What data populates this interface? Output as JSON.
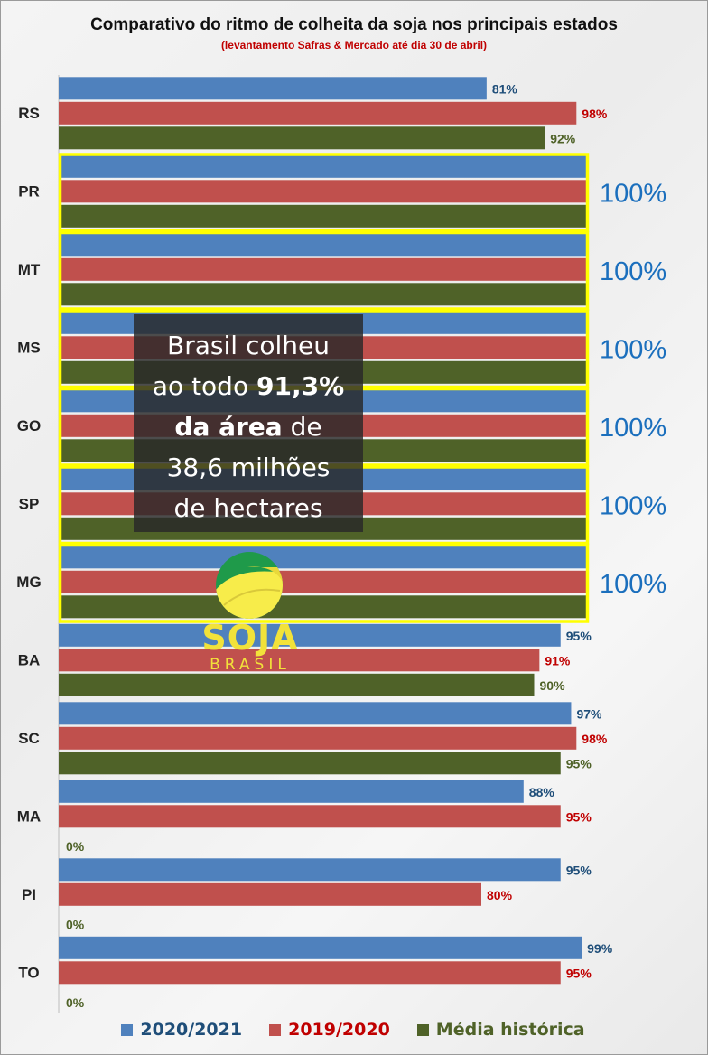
{
  "chart_data": {
    "type": "bar",
    "orientation": "horizontal",
    "title": "Comparativo do ritmo de colheita da soja nos principais estados",
    "subtitle": "(levantamento Safras & Mercado até dia 30  de abril)",
    "categories": [
      "RS",
      "PR",
      "MT",
      "MS",
      "GO",
      "SP",
      "MG",
      "BA",
      "SC",
      "MA",
      "PI",
      "TO"
    ],
    "series": [
      {
        "name": "2020/2021",
        "color": "#4f81bd",
        "label_color": "#1f4e79",
        "values": [
          81,
          100,
          100,
          100,
          100,
          100,
          100,
          95,
          97,
          88,
          95,
          99
        ],
        "labels": [
          "81%",
          "",
          "",
          "",
          "",
          "",
          "",
          "95%",
          "97%",
          "88%",
          "95%",
          "99%"
        ]
      },
      {
        "name": "2019/2020",
        "color": "#c0504d",
        "label_color": "#c00000",
        "values": [
          98,
          100,
          100,
          100,
          100,
          100,
          100,
          91,
          98,
          95,
          80,
          95
        ],
        "labels": [
          "98%",
          "",
          "",
          "",
          "",
          "",
          "",
          "91%",
          "98%",
          "95%",
          "80%",
          "95%"
        ]
      },
      {
        "name": "Média histórica",
        "color": "#4f6228",
        "label_color": "#4f6228",
        "values": [
          92,
          100,
          100,
          100,
          100,
          100,
          100,
          90,
          95,
          0,
          0,
          0
        ],
        "labels": [
          "92%",
          "",
          "",
          "",
          "",
          "",
          "",
          "90%",
          "95%",
          "0%",
          "0%",
          "0%"
        ]
      }
    ],
    "xlim": [
      0,
      100
    ],
    "grid": false,
    "legend_position": "bottom",
    "highlight": {
      "categories": [
        "PR",
        "MT",
        "MS",
        "GO",
        "SP",
        "MG"
      ],
      "color": "#ffff00",
      "label": "100%"
    },
    "annotation": {
      "line1": "Brasil colheu",
      "line2_pre": "ao todo ",
      "line2_bold": "91,3%",
      "line3_bold": "da área",
      "line3_post": " de",
      "line4": "38,6 milhões",
      "line5": "de hectares"
    }
  },
  "logo": {
    "word": "SOJA",
    "sub": "BRASIL"
  }
}
